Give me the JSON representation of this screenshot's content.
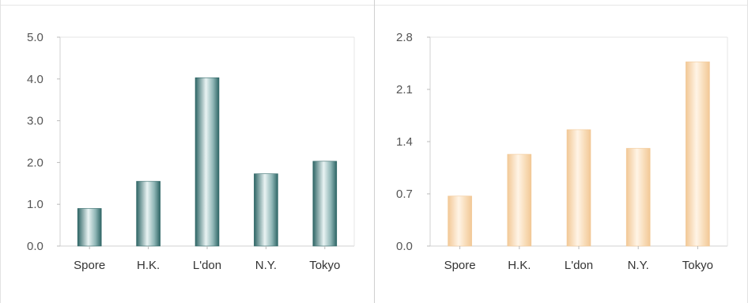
{
  "chart_data": [
    {
      "type": "bar",
      "categories": [
        "Spore",
        "H.K.",
        "L'don",
        "N.Y.",
        "Tokyo"
      ],
      "values": [
        0.9,
        1.55,
        4.03,
        1.73,
        2.03
      ],
      "ylim": [
        0,
        5
      ],
      "yticks": [
        "0.0",
        "1.0",
        "2.0",
        "3.0",
        "4.0",
        "5.0"
      ],
      "ytick_values": [
        0,
        1,
        2,
        3,
        4,
        5
      ],
      "grid": false,
      "colors": {
        "bar_dark": "#2f6666",
        "bar_light": "#e9f3f3",
        "bar_mid": "#8fb6b6"
      }
    },
    {
      "type": "bar",
      "categories": [
        "Spore",
        "H.K.",
        "L'don",
        "N.Y.",
        "Tokyo"
      ],
      "values": [
        0.67,
        1.23,
        1.56,
        1.31,
        2.47
      ],
      "ylim": [
        0,
        2.8
      ],
      "yticks": [
        "0.0",
        "0.7",
        "1.4",
        "2.1",
        "2.8"
      ],
      "ytick_values": [
        0,
        0.7,
        1.4,
        2.1,
        2.8
      ],
      "grid": false,
      "colors": {
        "bar_dark": "#f2c896",
        "bar_light": "#fff4e6",
        "bar_mid": "#f8dcb8"
      }
    }
  ]
}
